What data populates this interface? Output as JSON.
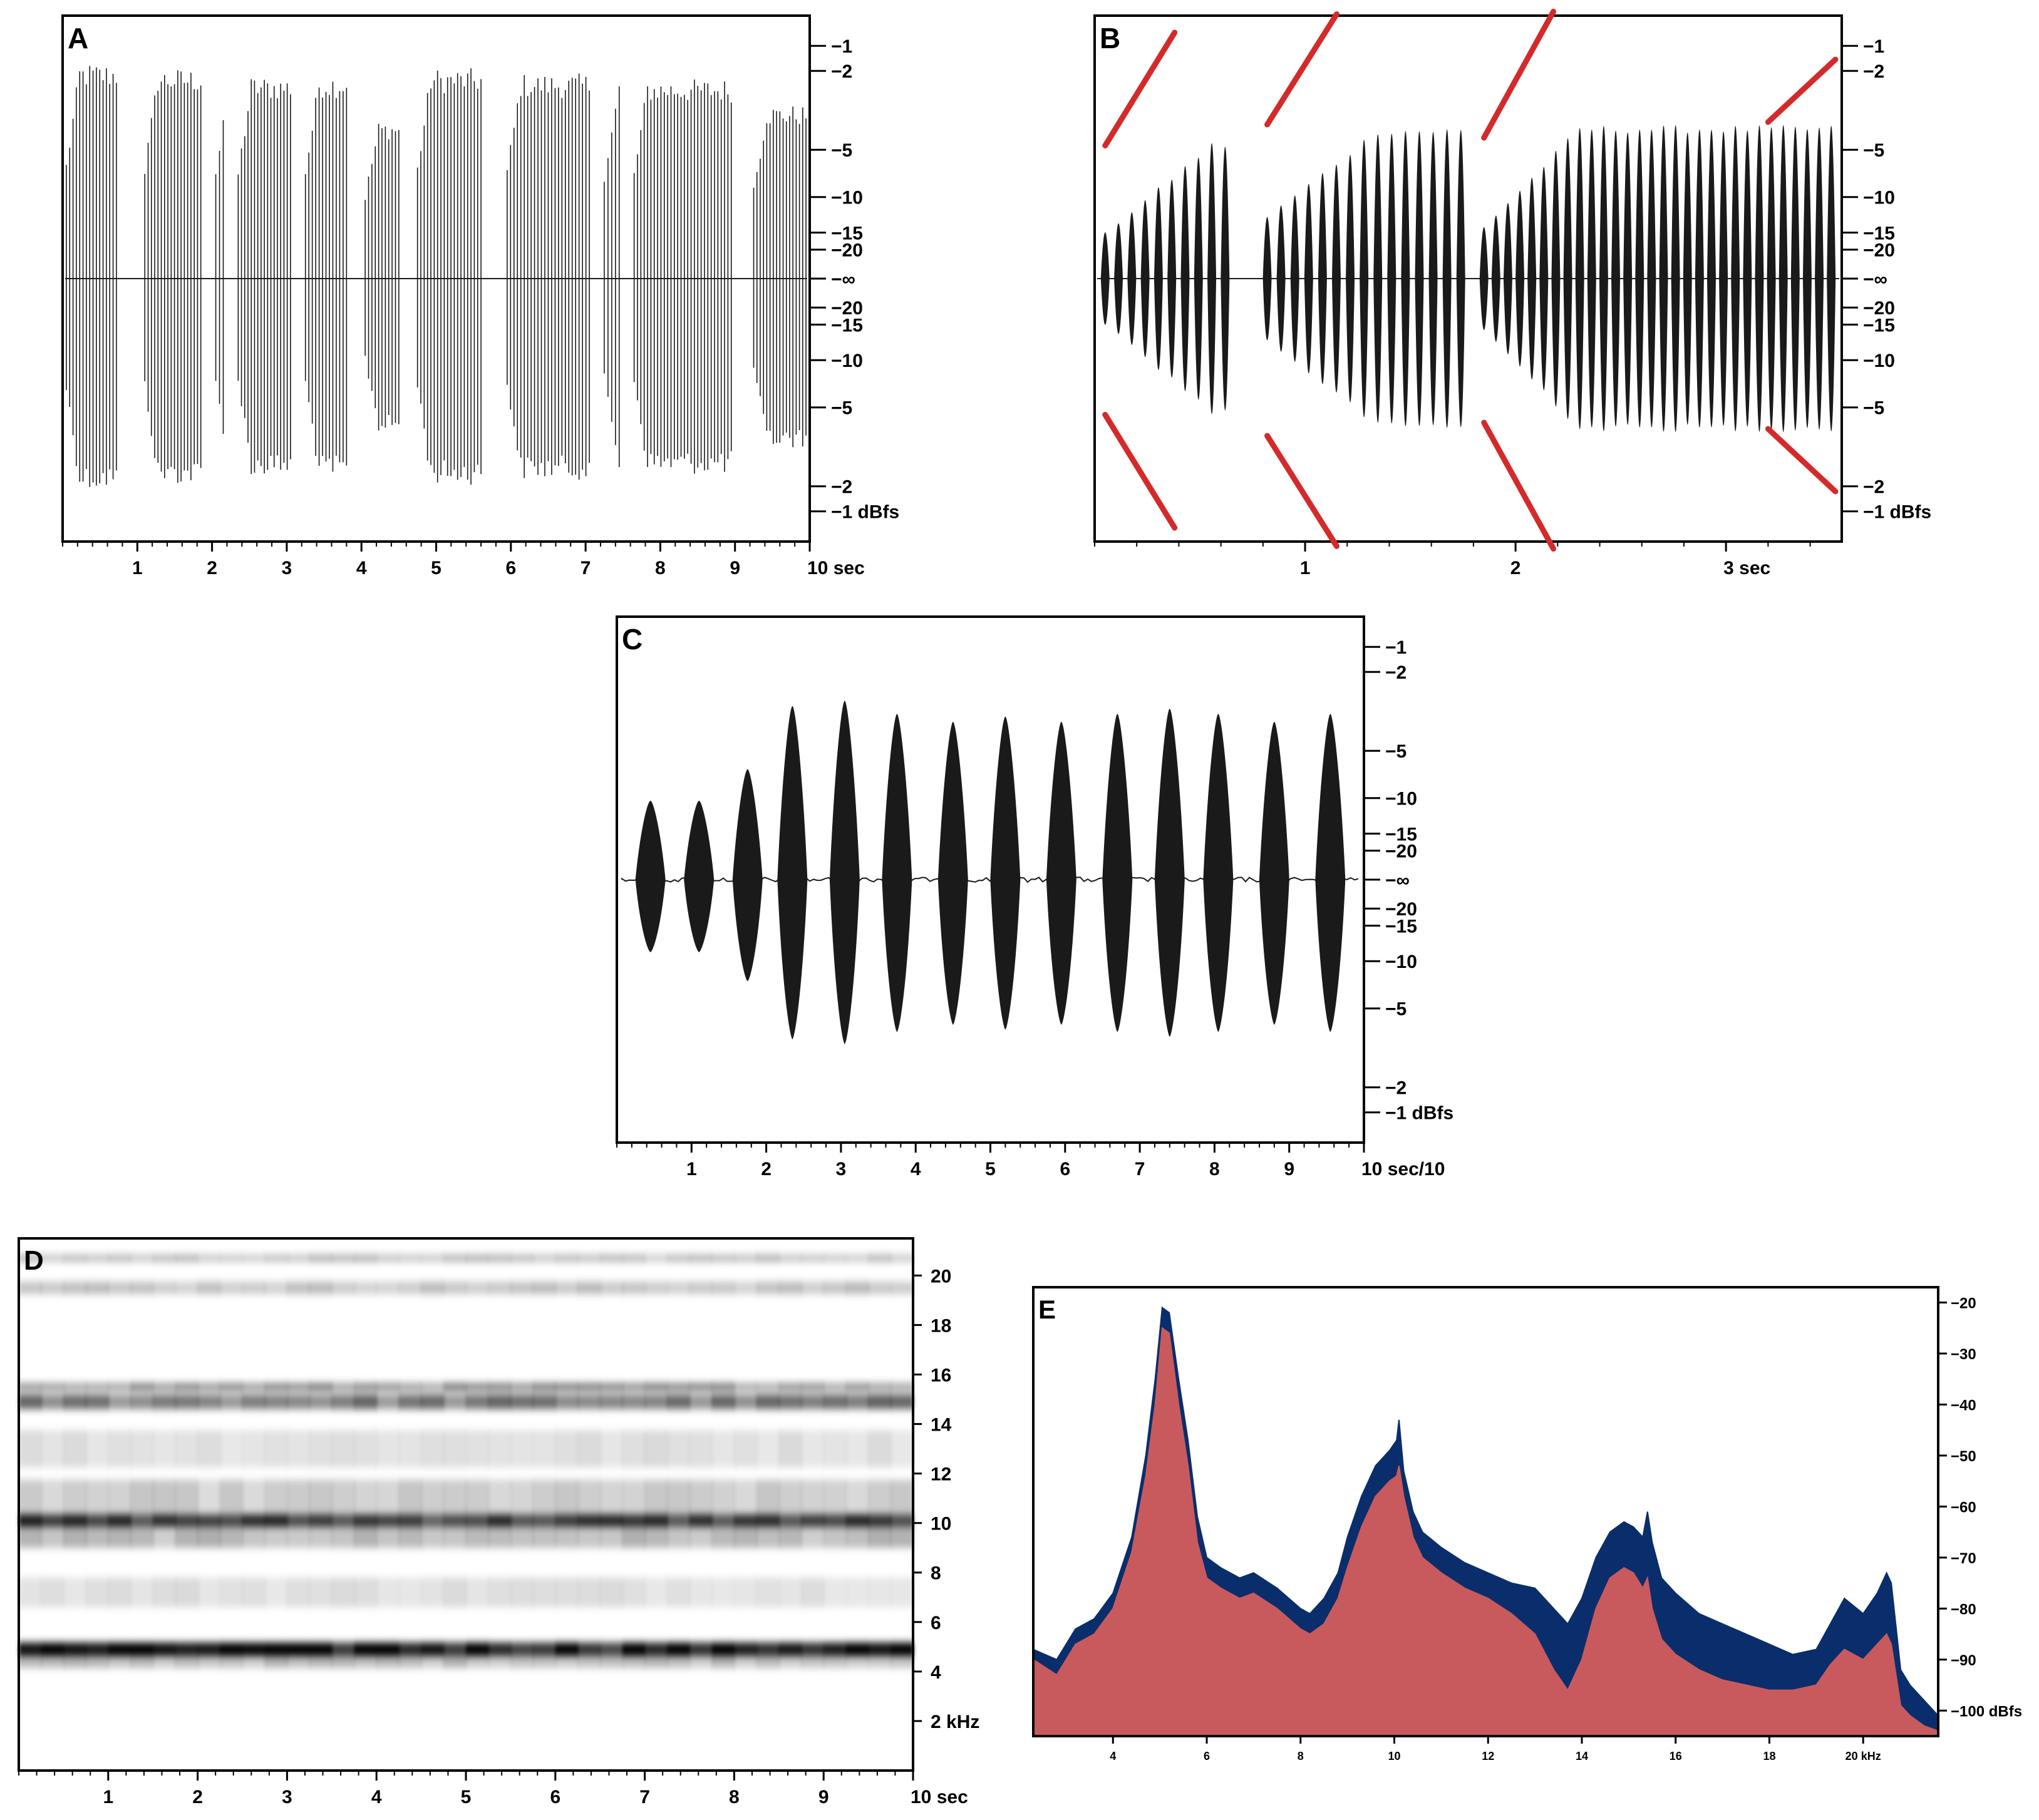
{
  "colors": {
    "waveform": "#1a1a1a",
    "marker": "#d42a2a",
    "spectrum_peak": "#0a2e6b",
    "spectrum_avg": "#c85a5e",
    "spectrogram_ink": "#000000"
  },
  "chart_data": [
    {
      "panel": "A",
      "type": "line",
      "chart_kind": "waveform",
      "x_ticks": [
        "1",
        "2",
        "3",
        "4",
        "5",
        "6",
        "7",
        "8",
        "9",
        "10 sec"
      ],
      "xlim": [
        0,
        10
      ],
      "y_ticks": [
        "−1",
        "−2",
        "−5",
        "−10",
        "−15",
        "−20",
        "−∞",
        "−20",
        "−15",
        "−10",
        "−5",
        "−2",
        "−1 dBfs"
      ],
      "bursts": [
        {
          "start": 0.05,
          "end": 0.72,
          "amp": 0.82
        },
        {
          "start": 1.1,
          "end": 1.85,
          "amp": 0.8
        },
        {
          "start": 2.05,
          "end": 2.15,
          "amp": 0.78
        },
        {
          "start": 2.35,
          "end": 3.05,
          "amp": 0.77
        },
        {
          "start": 3.25,
          "end": 3.8,
          "amp": 0.78
        },
        {
          "start": 4.05,
          "end": 4.5,
          "amp": 0.6
        },
        {
          "start": 4.75,
          "end": 5.6,
          "amp": 0.8
        },
        {
          "start": 5.95,
          "end": 7.05,
          "amp": 0.78
        },
        {
          "start": 7.25,
          "end": 7.45,
          "amp": 0.76
        },
        {
          "start": 7.65,
          "end": 8.95,
          "amp": 0.76
        },
        {
          "start": 9.25,
          "end": 9.95,
          "amp": 0.66
        }
      ]
    },
    {
      "panel": "B",
      "type": "line",
      "chart_kind": "waveform",
      "x_ticks": [
        "1",
        "2",
        "3 sec"
      ],
      "xlim": [
        0,
        3.55
      ],
      "y_ticks": [
        "−1",
        "−2",
        "−5",
        "−10",
        "−15",
        "−20",
        "−∞",
        "−20",
        "−15",
        "−10",
        "−5",
        "−2",
        "−1 dBfs"
      ],
      "bursts": [
        {
          "start": 0.05,
          "end": 0.62,
          "amp_start": 0.22,
          "amp_end": 0.65,
          "pulses": 10
        },
        {
          "start": 0.82,
          "end": 1.74,
          "amp_start": 0.3,
          "amp_end": 0.72,
          "pulses": 15
        },
        {
          "start": 1.85,
          "end": 3.5,
          "amp_start": 0.25,
          "amp_end": 0.73,
          "pulses": 30
        }
      ],
      "markers": "red diagonal ramps above and below each burst onset"
    },
    {
      "panel": "C",
      "type": "line",
      "chart_kind": "waveform",
      "x_ticks": [
        "1",
        "2",
        "3",
        "4",
        "5",
        "6",
        "7",
        "8",
        "9",
        "10 sec/10"
      ],
      "xlim": [
        0,
        10
      ],
      "y_ticks": [
        "−1",
        "−2",
        "−5",
        "−10",
        "−15",
        "−20",
        "−∞",
        "−20",
        "−15",
        "−10",
        "−5",
        "−2",
        "−1 dBfs"
      ],
      "pulses": [
        {
          "t": 0.45,
          "amp": 0.3
        },
        {
          "t": 1.1,
          "amp": 0.3
        },
        {
          "t": 1.75,
          "amp": 0.42
        },
        {
          "t": 2.35,
          "amp": 0.66
        },
        {
          "t": 3.05,
          "amp": 0.68
        },
        {
          "t": 3.75,
          "amp": 0.63
        },
        {
          "t": 4.5,
          "amp": 0.6
        },
        {
          "t": 5.2,
          "amp": 0.62
        },
        {
          "t": 5.95,
          "amp": 0.6
        },
        {
          "t": 6.7,
          "amp": 0.63
        },
        {
          "t": 7.4,
          "amp": 0.65
        },
        {
          "t": 8.05,
          "amp": 0.63
        },
        {
          "t": 8.8,
          "amp": 0.6
        },
        {
          "t": 9.55,
          "amp": 0.63
        }
      ]
    },
    {
      "panel": "D",
      "type": "heatmap",
      "chart_kind": "spectrogram",
      "x_ticks": [
        "1",
        "2",
        "3",
        "4",
        "5",
        "6",
        "7",
        "8",
        "9",
        "10 sec"
      ],
      "xlim": [
        0,
        10
      ],
      "y_ticks": [
        "2 kHz",
        "4",
        "6",
        "8",
        "10",
        "12",
        "14",
        "16",
        "18",
        "20"
      ],
      "ylim": [
        0,
        21.5
      ],
      "bands": [
        {
          "freq": 4.9,
          "width": 0.55,
          "intensity": 0.95
        },
        {
          "freq": 4.4,
          "width": 0.5,
          "intensity": 0.25
        },
        {
          "freq": 10.1,
          "width": 0.5,
          "intensity": 0.7
        },
        {
          "freq": 9.6,
          "width": 1.2,
          "intensity": 0.25
        },
        {
          "freq": 11.0,
          "width": 1.5,
          "intensity": 0.18
        },
        {
          "freq": 14.9,
          "width": 0.6,
          "intensity": 0.5
        },
        {
          "freq": 15.5,
          "width": 0.3,
          "intensity": 0.45
        },
        {
          "freq": 13.0,
          "width": 1.5,
          "intensity": 0.12
        },
        {
          "freq": 7.2,
          "width": 1.2,
          "intensity": 0.12
        },
        {
          "freq": 19.5,
          "width": 0.5,
          "intensity": 0.22
        },
        {
          "freq": 20.7,
          "width": 0.3,
          "intensity": 0.25
        }
      ]
    },
    {
      "panel": "E",
      "type": "area",
      "chart_kind": "power spectrum",
      "x_ticks": [
        "4",
        "6",
        "8",
        "10",
        "12",
        "14",
        "16",
        "18",
        "20 kHz"
      ],
      "xlim": [
        2.3,
        21.6
      ],
      "y_ticks": [
        "−20",
        "−30",
        "−40",
        "−50",
        "−60",
        "−70",
        "−80",
        "−90",
        "−100 dBfs"
      ],
      "ylim": [
        -105,
        -17
      ],
      "series": [
        {
          "x": [
            2.3,
            2.8,
            3.2,
            3.6,
            4.0,
            4.4,
            4.7,
            4.9,
            5.05,
            5.2,
            5.4,
            5.6,
            5.8,
            6.0,
            6.3,
            6.7,
            7.0,
            7.5,
            8.0,
            8.2,
            8.5,
            8.8,
            9.0,
            9.3,
            9.6,
            9.9,
            10.05,
            10.1,
            10.2,
            10.4,
            10.6,
            11.0,
            11.5,
            12.0,
            12.5,
            13.0,
            13.4,
            13.7,
            14.0,
            14.3,
            14.6,
            14.9,
            15.1,
            15.3,
            15.4,
            15.5,
            15.7,
            16.0,
            16.5,
            17.0,
            17.5,
            18.0,
            18.5,
            19.0,
            19.3,
            19.6,
            20.0,
            20.3,
            20.5,
            20.6,
            20.8,
            21.0,
            21.3,
            21.6
          ],
          "y": [
            -88,
            -90,
            -84,
            -82,
            -77,
            -66,
            -50,
            -35,
            -21,
            -22,
            -35,
            -47,
            -62,
            -70,
            -72,
            -74,
            -73,
            -76,
            -80,
            -81,
            -78,
            -73,
            -66,
            -58,
            -52,
            -49,
            -47,
            -43,
            -53,
            -61,
            -65,
            -68,
            -71,
            -73,
            -75,
            -76,
            -80,
            -83,
            -78,
            -70,
            -65,
            -63,
            -64,
            -66,
            -61,
            -67,
            -74,
            -77,
            -81,
            -83,
            -85,
            -87,
            -89,
            -88,
            -83,
            -78,
            -81,
            -77,
            -73,
            -75,
            -92,
            -95,
            -98,
            -101
          ]
        },
        {
          "x": [
            2.3,
            2.8,
            3.2,
            3.6,
            4.0,
            4.4,
            4.7,
            4.9,
            5.05,
            5.2,
            5.4,
            5.6,
            5.8,
            6.0,
            6.3,
            6.7,
            7.0,
            7.5,
            8.0,
            8.2,
            8.5,
            8.8,
            9.0,
            9.3,
            9.6,
            9.9,
            10.05,
            10.1,
            10.2,
            10.4,
            10.6,
            11.0,
            11.5,
            12.0,
            12.5,
            13.0,
            13.4,
            13.7,
            14.0,
            14.3,
            14.6,
            14.9,
            15.1,
            15.3,
            15.4,
            15.5,
            15.7,
            16.0,
            16.5,
            17.0,
            17.5,
            18.0,
            18.5,
            19.0,
            19.3,
            19.6,
            20.0,
            20.3,
            20.5,
            20.6,
            20.8,
            21.0,
            21.3,
            21.6
          ],
          "y": [
            -90,
            -93,
            -87,
            -85,
            -80,
            -69,
            -54,
            -40,
            -25,
            -26,
            -40,
            -52,
            -67,
            -74,
            -76,
            -78,
            -77,
            -80,
            -84,
            -85,
            -83,
            -78,
            -72,
            -64,
            -58,
            -55,
            -54,
            -52,
            -58,
            -66,
            -70,
            -73,
            -76,
            -78,
            -81,
            -85,
            -92,
            -96,
            -90,
            -80,
            -74,
            -72,
            -73,
            -76,
            -74,
            -80,
            -86,
            -89,
            -92,
            -94,
            -95,
            -96,
            -96,
            -95,
            -91,
            -88,
            -90,
            -87,
            -85,
            -87,
            -99,
            -101,
            -103,
            -104
          ]
        }
      ]
    }
  ]
}
